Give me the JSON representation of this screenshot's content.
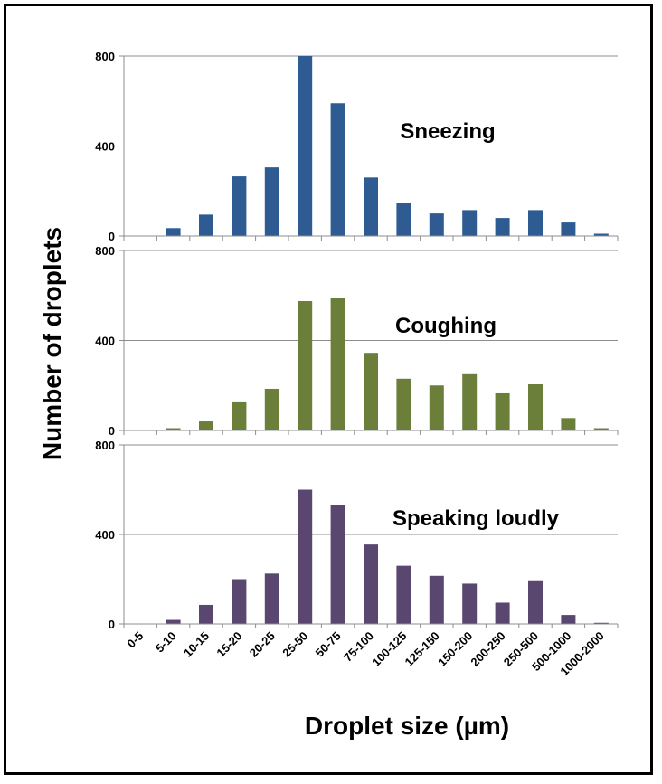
{
  "chart_data": {
    "type": "bar",
    "xlabel": "Droplet size (µm)",
    "ylabel": "Number of droplets",
    "ylim": [
      0,
      800
    ],
    "yticks": [
      0,
      400,
      800
    ],
    "categories": [
      "0-5",
      "5-10",
      "10-15",
      "15-20",
      "20-25",
      "25-50",
      "50-75",
      "75-100",
      "100-125",
      "125-150",
      "150-200",
      "200-250",
      "250-500",
      "500-1000",
      "1000-2000"
    ],
    "series": [
      {
        "name": "Sneezing",
        "color": "#2e5c92",
        "values": [
          0,
          35,
          95,
          265,
          305,
          800,
          590,
          260,
          145,
          100,
          115,
          80,
          115,
          60,
          10
        ]
      },
      {
        "name": "Coughing",
        "color": "#6b7f3b",
        "values": [
          0,
          10,
          40,
          125,
          185,
          575,
          590,
          345,
          230,
          200,
          250,
          165,
          205,
          55,
          10
        ]
      },
      {
        "name": "Speaking loudly",
        "color": "#594770",
        "values": [
          0,
          18,
          85,
          200,
          225,
          600,
          530,
          355,
          260,
          215,
          180,
          95,
          195,
          40,
          5
        ]
      }
    ]
  }
}
